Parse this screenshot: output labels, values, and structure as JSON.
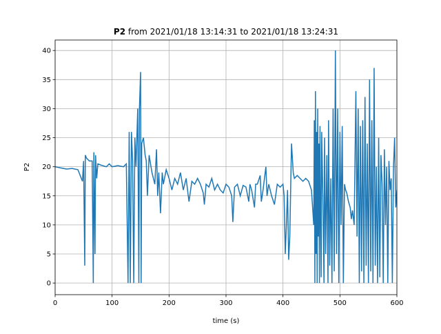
{
  "chart_data": {
    "type": "line",
    "title_bold": "P2",
    "title": "from 2021/01/18 13:14:31 to 2021/01/18 13:24:31",
    "xlabel": "time (s)",
    "ylabel": "P2",
    "xlim": [
      0,
      600
    ],
    "ylim": [
      -2,
      41.8
    ],
    "xticks": [
      0,
      100,
      200,
      300,
      400,
      500,
      600
    ],
    "yticks": [
      0,
      5,
      10,
      15,
      20,
      25,
      30,
      35,
      40
    ],
    "grid": true,
    "series": [
      {
        "name": "P2",
        "color": "#1f77b4",
        "x": [
          0,
          10,
          20,
          30,
          40,
          48,
          50,
          52,
          53,
          55,
          60,
          65,
          67,
          68,
          70,
          71,
          73,
          75,
          80,
          90,
          95,
          100,
          110,
          120,
          125,
          128,
          130,
          132,
          134,
          136,
          138,
          140,
          142,
          145,
          147,
          148,
          150,
          151,
          152,
          155,
          158,
          160,
          162,
          165,
          170,
          175,
          178,
          180,
          182,
          185,
          188,
          190,
          195,
          200,
          205,
          210,
          215,
          220,
          225,
          230,
          235,
          240,
          245,
          250,
          255,
          260,
          262,
          265,
          270,
          275,
          280,
          285,
          290,
          295,
          300,
          305,
          310,
          312,
          315,
          320,
          325,
          330,
          335,
          340,
          342,
          345,
          350,
          352,
          355,
          360,
          362,
          365,
          370,
          372,
          375,
          380,
          385,
          390,
          395,
          400,
          402,
          404,
          406,
          408,
          410,
          412,
          414,
          415,
          418,
          420,
          425,
          430,
          435,
          440,
          445,
          450,
          452,
          454,
          455,
          456,
          457,
          458,
          459,
          460,
          461,
          462,
          463,
          464,
          465,
          466,
          467,
          468,
          470,
          472,
          473,
          475,
          477,
          479,
          480,
          482,
          484,
          486,
          488,
          490,
          492,
          494,
          496,
          498,
          500,
          502,
          504,
          506,
          508,
          510,
          512,
          515,
          518,
          520,
          522,
          525,
          528,
          530,
          532,
          534,
          536,
          538,
          540,
          542,
          544,
          546,
          548,
          550,
          552,
          554,
          556,
          558,
          560,
          562,
          564,
          566,
          568,
          570,
          572,
          574,
          576,
          578,
          580,
          582,
          584,
          586,
          588,
          590,
          592,
          594,
          596,
          598,
          600
        ],
        "values": [
          20,
          19.8,
          19.6,
          19.7,
          19.5,
          17.5,
          21,
          3,
          22,
          21.5,
          21,
          21,
          0,
          22.5,
          5,
          22,
          18,
          20.5,
          20.3,
          20,
          20.5,
          20,
          20.2,
          20,
          20.5,
          0,
          26,
          0,
          26,
          21,
          0,
          25,
          20,
          30,
          0,
          30,
          36.3,
          0,
          24,
          25,
          22,
          21,
          15,
          22,
          19,
          17,
          23,
          15,
          19,
          12,
          19,
          17,
          19.5,
          18,
          16,
          18,
          17,
          19,
          16,
          18,
          14,
          17.5,
          17,
          18,
          17,
          15.5,
          13.5,
          17,
          16.5,
          18,
          16,
          17,
          16,
          15.5,
          17,
          16.5,
          15,
          10.5,
          16.5,
          17,
          15,
          16.8,
          16.5,
          14,
          17,
          16,
          13,
          17,
          17,
          18.5,
          14,
          16,
          20,
          15,
          17,
          15,
          13.5,
          17,
          16.5,
          17,
          15,
          5,
          10,
          16,
          4,
          8,
          19,
          24,
          19,
          18,
          18.5,
          18,
          17.5,
          18,
          17.5,
          16,
          13,
          10,
          28,
          0,
          33,
          5,
          26,
          0,
          30,
          8,
          24,
          0,
          27,
          12,
          1,
          26,
          15,
          0,
          25,
          5,
          22,
          0,
          28,
          3,
          18,
          0,
          30,
          2,
          40,
          5,
          30,
          0,
          26,
          10,
          27,
          0,
          17,
          16,
          15.5,
          14,
          13,
          11,
          12.5,
          10,
          33,
          8,
          30,
          0,
          27,
          2,
          28,
          0,
          32,
          3,
          24,
          0,
          35,
          2,
          28,
          0,
          37,
          3,
          20,
          0,
          25,
          1,
          22,
          17,
          0,
          23,
          10,
          20,
          0,
          21,
          16,
          18,
          0,
          20,
          25,
          13,
          16
        ]
      }
    ]
  }
}
